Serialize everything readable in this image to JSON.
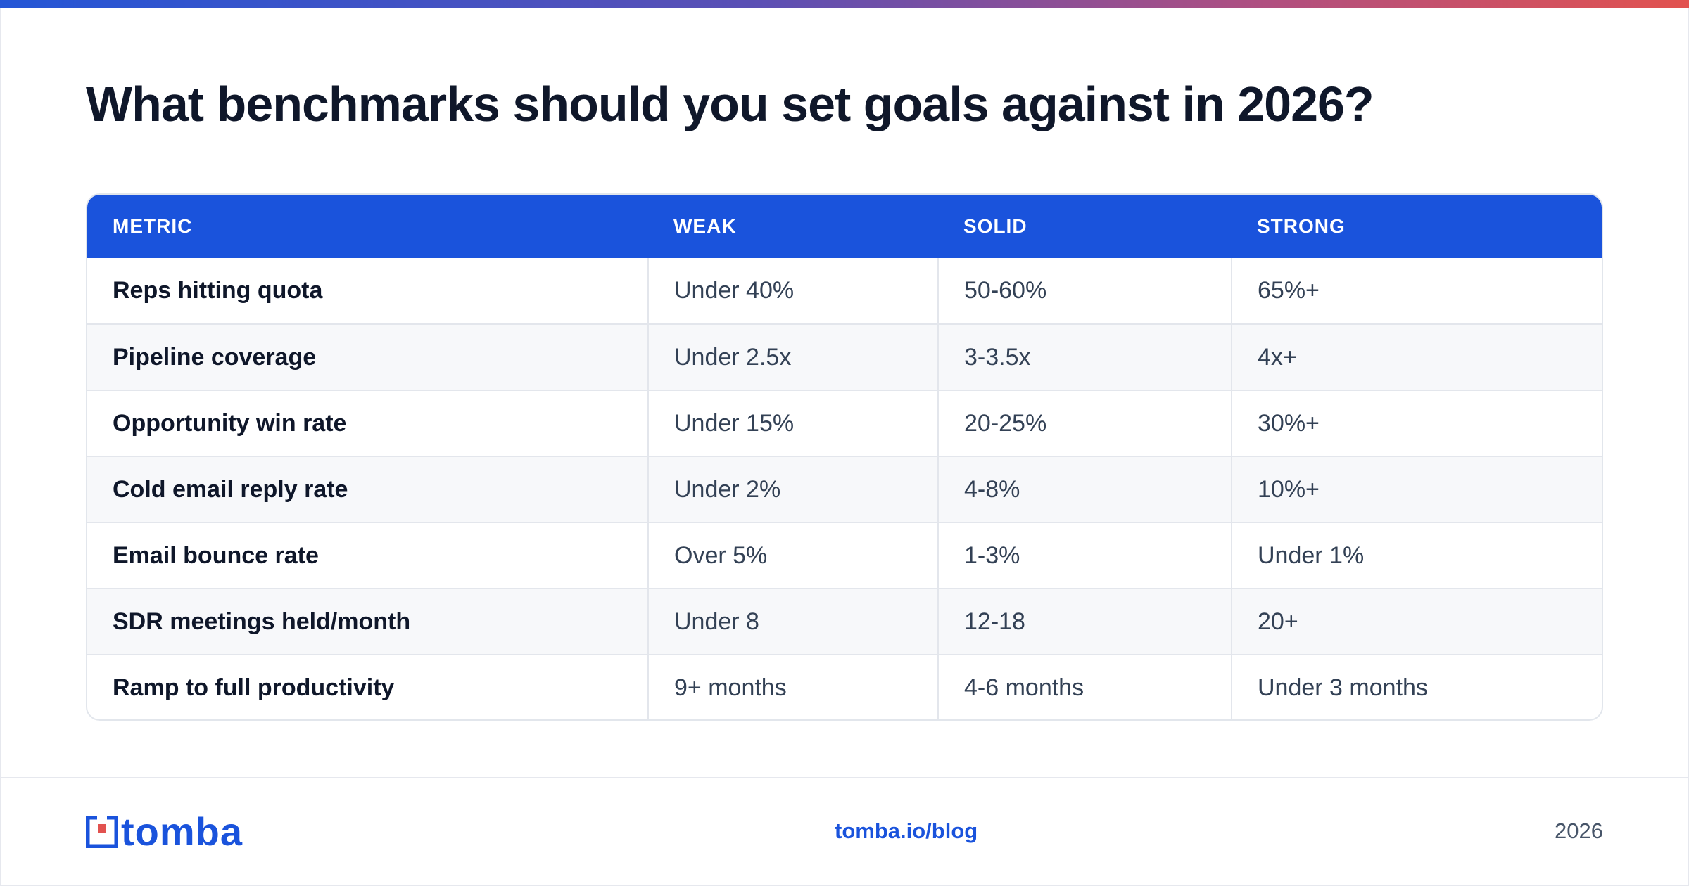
{
  "title": "What benchmarks should you set goals against in 2026?",
  "table": {
    "headers": [
      "METRIC",
      "WEAK",
      "SOLID",
      "STRONG"
    ],
    "rows": [
      [
        "Reps hitting quota",
        "Under 40%",
        "50-60%",
        "65%+"
      ],
      [
        "Pipeline coverage",
        "Under 2.5x",
        "3-3.5x",
        "4x+"
      ],
      [
        "Opportunity win rate",
        "Under 15%",
        "20-25%",
        "30%+"
      ],
      [
        "Cold email reply rate",
        "Under 2%",
        "4-8%",
        "10%+"
      ],
      [
        "Email bounce rate",
        "Over 5%",
        "1-3%",
        "Under 1%"
      ],
      [
        "SDR meetings held/month",
        "Under 8",
        "12-18",
        "20+"
      ],
      [
        "Ramp to full productivity",
        "9+ months",
        "4-6 months",
        "Under 3 months"
      ]
    ]
  },
  "footer": {
    "logo_text": "tomba",
    "link": "tomba.io/blog",
    "year": "2026"
  },
  "colors": {
    "accent": "#1a53dc",
    "header_bg": "#1a53dc",
    "text_dark": "#0f172a",
    "text_muted": "#475569"
  },
  "icons": {
    "logo": "tomba-logo-icon"
  }
}
